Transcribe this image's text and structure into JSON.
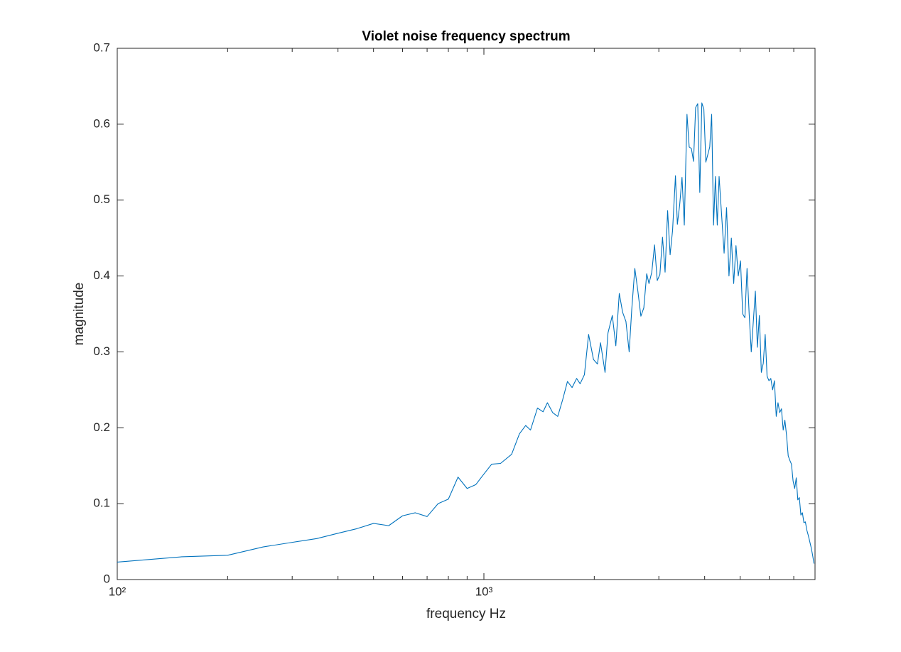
{
  "chart_data": {
    "type": "line",
    "title": "Violet noise frequency spectrum",
    "xlabel": "frequency Hz",
    "ylabel": "magnitude",
    "xscale": "log",
    "color": "#0072BD",
    "grid": false,
    "box": true,
    "xlim": [
      100,
      8000
    ],
    "ylim": [
      0,
      0.7
    ],
    "xticks": [
      {
        "value": 100,
        "label": "10²"
      },
      {
        "value": 1000,
        "label": "10³"
      }
    ],
    "xminorticks": [
      200,
      300,
      400,
      500,
      600,
      700,
      800,
      900,
      2000,
      3000,
      4000,
      5000,
      6000,
      7000
    ],
    "yticks": [
      0,
      0.1,
      0.2,
      0.3,
      0.4,
      0.5,
      0.6,
      0.7
    ],
    "x": [
      100,
      150,
      200,
      250,
      300,
      350,
      400,
      450,
      500,
      550,
      600,
      650,
      700,
      750,
      800,
      850,
      900,
      950,
      1000,
      1050,
      1110,
      1190,
      1250,
      1300,
      1340,
      1400,
      1450,
      1490,
      1540,
      1590,
      1640,
      1690,
      1740,
      1790,
      1830,
      1880,
      1930,
      1990,
      2040,
      2080,
      2140,
      2180,
      2240,
      2290,
      2340,
      2390,
      2440,
      2490,
      2530,
      2580,
      2630,
      2680,
      2730,
      2780,
      2820,
      2870,
      2920,
      2970,
      3020,
      3070,
      3120,
      3170,
      3220,
      3270,
      3330,
      3370,
      3420,
      3470,
      3520,
      3580,
      3630,
      3680,
      3730,
      3780,
      3830,
      3880,
      3930,
      3980,
      4030,
      4080,
      4130,
      4180,
      4230,
      4280,
      4330,
      4380,
      4450,
      4520,
      4590,
      4660,
      4730,
      4800,
      4870,
      4940,
      5010,
      5080,
      5150,
      5220,
      5290,
      5360,
      5430,
      5500,
      5570,
      5640,
      5710,
      5780,
      5850,
      5920,
      5990,
      6060,
      6130,
      6200,
      6270,
      6340,
      6410,
      6480,
      6550,
      6620,
      6690,
      6760,
      6830,
      6900,
      6970,
      7040,
      7110,
      7180,
      7250,
      7320,
      7390,
      7460,
      7530,
      7600,
      7670,
      7740,
      7810,
      7880,
      7950
    ],
    "values": [
      0.023,
      0.03,
      0.032,
      0.043,
      0.049,
      0.054,
      0.061,
      0.067,
      0.074,
      0.071,
      0.084,
      0.088,
      0.083,
      0.1,
      0.106,
      0.135,
      0.12,
      0.125,
      0.139,
      0.152,
      0.153,
      0.165,
      0.192,
      0.203,
      0.197,
      0.226,
      0.221,
      0.233,
      0.22,
      0.215,
      0.237,
      0.261,
      0.253,
      0.265,
      0.258,
      0.27,
      0.323,
      0.29,
      0.284,
      0.312,
      0.273,
      0.325,
      0.348,
      0.308,
      0.377,
      0.352,
      0.34,
      0.3,
      0.355,
      0.41,
      0.38,
      0.347,
      0.358,
      0.403,
      0.39,
      0.405,
      0.441,
      0.394,
      0.402,
      0.451,
      0.405,
      0.486,
      0.428,
      0.46,
      0.532,
      0.468,
      0.494,
      0.53,
      0.467,
      0.613,
      0.57,
      0.568,
      0.551,
      0.622,
      0.627,
      0.51,
      0.628,
      0.62,
      0.55,
      0.56,
      0.57,
      0.613,
      0.467,
      0.531,
      0.467,
      0.531,
      0.48,
      0.43,
      0.49,
      0.4,
      0.45,
      0.39,
      0.44,
      0.4,
      0.42,
      0.35,
      0.345,
      0.41,
      0.35,
      0.3,
      0.34,
      0.38,
      0.306,
      0.348,
      0.273,
      0.285,
      0.323,
      0.268,
      0.262,
      0.265,
      0.25,
      0.262,
      0.215,
      0.233,
      0.22,
      0.225,
      0.197,
      0.21,
      0.19,
      0.163,
      0.157,
      0.152,
      0.13,
      0.12,
      0.134,
      0.105,
      0.108,
      0.085,
      0.088,
      0.075,
      0.076,
      0.065,
      0.058,
      0.05,
      0.042,
      0.032,
      0.021
    ]
  }
}
